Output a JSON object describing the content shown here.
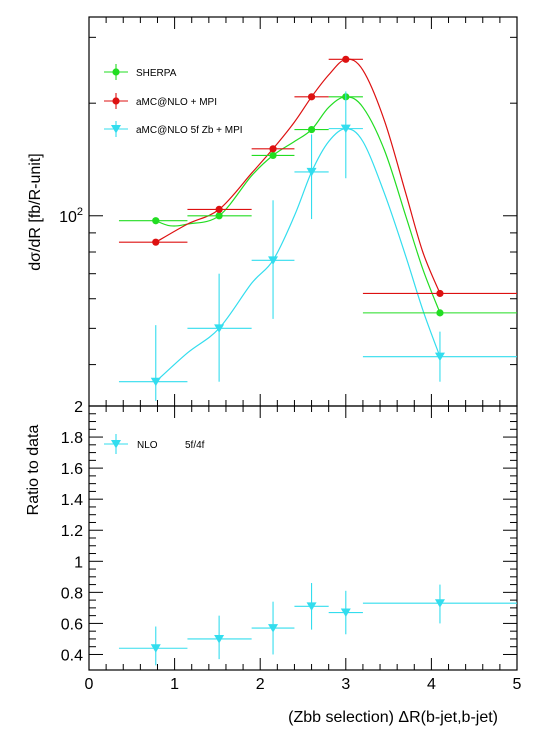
{
  "chart_data": [
    {
      "panel": "top",
      "type": "scatter",
      "ylabel": "dσ/dR [fb/R-unit]",
      "yscale": "log",
      "ylim": [
        31,
        340
      ],
      "xlim": [
        0,
        5
      ],
      "ytick_labels": [
        {
          "value": 100,
          "label": "10²"
        }
      ],
      "legend_position": "top-left",
      "series": [
        {
          "name": "SHERPA",
          "color": "#22dd22",
          "marker": "circle",
          "points": [
            {
              "x": 0.78,
              "xlo": 0.35,
              "xhi": 1.15,
              "y": 97,
              "ylo": 97,
              "yhi": 97
            },
            {
              "x": 1.52,
              "xlo": 1.15,
              "xhi": 1.9,
              "y": 100,
              "ylo": 100,
              "yhi": 100
            },
            {
              "x": 2.15,
              "xlo": 1.9,
              "xhi": 2.4,
              "y": 145,
              "ylo": 145,
              "yhi": 145
            },
            {
              "x": 2.6,
              "xlo": 2.4,
              "xhi": 2.8,
              "y": 170,
              "ylo": 170,
              "yhi": 170
            },
            {
              "x": 3.0,
              "xlo": 2.8,
              "xhi": 3.2,
              "y": 208,
              "ylo": 208,
              "yhi": 208
            },
            {
              "x": 4.1,
              "xlo": 3.2,
              "xhi": 5.0,
              "y": 55,
              "ylo": 55,
              "yhi": 55
            }
          ],
          "curve": [
            [
              0.78,
              97
            ],
            [
              0.95,
              94
            ],
            [
              1.15,
              95
            ],
            [
              1.52,
              100
            ],
            [
              1.9,
              128
            ],
            [
              2.15,
              145
            ],
            [
              2.4,
              158
            ],
            [
              2.6,
              170
            ],
            [
              2.8,
              195
            ],
            [
              3.0,
              208
            ],
            [
              3.2,
              195
            ],
            [
              3.45,
              150
            ],
            [
              3.7,
              100
            ],
            [
              3.9,
              72
            ],
            [
              4.1,
              55
            ]
          ]
        },
        {
          "name": "aMC@NLO + MPI",
          "color": "#dd1111",
          "marker": "circle",
          "points": [
            {
              "x": 0.78,
              "xlo": 0.35,
              "xhi": 1.15,
              "y": 85,
              "ylo": 85,
              "yhi": 85
            },
            {
              "x": 1.52,
              "xlo": 1.15,
              "xhi": 1.9,
              "y": 104,
              "ylo": 104,
              "yhi": 104
            },
            {
              "x": 2.15,
              "xlo": 1.9,
              "xhi": 2.4,
              "y": 151,
              "ylo": 151,
              "yhi": 151
            },
            {
              "x": 2.6,
              "xlo": 2.4,
              "xhi": 2.8,
              "y": 208,
              "ylo": 208,
              "yhi": 208
            },
            {
              "x": 3.0,
              "xlo": 2.8,
              "xhi": 3.2,
              "y": 262,
              "ylo": 262,
              "yhi": 262
            },
            {
              "x": 4.1,
              "xlo": 3.2,
              "xhi": 5.0,
              "y": 62,
              "ylo": 62,
              "yhi": 62
            }
          ],
          "curve": [
            [
              0.78,
              85
            ],
            [
              1.15,
              95
            ],
            [
              1.52,
              104
            ],
            [
              1.9,
              130
            ],
            [
              2.15,
              151
            ],
            [
              2.4,
              178
            ],
            [
              2.6,
              208
            ],
            [
              2.8,
              238
            ],
            [
              3.0,
              262
            ],
            [
              3.2,
              245
            ],
            [
              3.45,
              180
            ],
            [
              3.7,
              115
            ],
            [
              3.9,
              80
            ],
            [
              4.1,
              62
            ]
          ]
        },
        {
          "name": "aMC@NLO 5f Zb + MPI",
          "color": "#33ddee",
          "marker": "triangle-down",
          "points": [
            {
              "x": 0.78,
              "xlo": 0.35,
              "xhi": 1.15,
              "y": 36,
              "ylo": 32,
              "yhi": 51
            },
            {
              "x": 1.52,
              "xlo": 1.15,
              "xhi": 1.9,
              "y": 50,
              "ylo": 36,
              "yhi": 70
            },
            {
              "x": 2.15,
              "xlo": 1.9,
              "xhi": 2.4,
              "y": 76,
              "ylo": 53,
              "yhi": 110
            },
            {
              "x": 2.6,
              "xlo": 2.4,
              "xhi": 2.8,
              "y": 131,
              "ylo": 98,
              "yhi": 165
            },
            {
              "x": 3.0,
              "xlo": 2.8,
              "xhi": 3.2,
              "y": 171,
              "ylo": 126,
              "yhi": 215
            },
            {
              "x": 4.1,
              "xlo": 3.2,
              "xhi": 5.0,
              "y": 42,
              "ylo": 36,
              "yhi": 49
            }
          ],
          "curve": [
            [
              0.78,
              36
            ],
            [
              1.15,
              43
            ],
            [
              1.52,
              50
            ],
            [
              1.9,
              66
            ],
            [
              2.15,
              76
            ],
            [
              2.4,
              100
            ],
            [
              2.6,
              131
            ],
            [
              2.8,
              158
            ],
            [
              3.0,
              171
            ],
            [
              3.2,
              158
            ],
            [
              3.45,
              115
            ],
            [
              3.7,
              78
            ],
            [
              3.9,
              56
            ],
            [
              4.1,
              42
            ]
          ]
        }
      ]
    },
    {
      "panel": "bottom",
      "type": "scatter",
      "ylabel": "Ratio to data",
      "xlabel": "(Zbb selection) ΔR(b-jet,b-jet)",
      "ylim": [
        0.3,
        2.0
      ],
      "xlim": [
        0,
        5
      ],
      "yticks": [
        0.4,
        0.6,
        0.8,
        1,
        1.2,
        1.4,
        1.6,
        1.8,
        2
      ],
      "xticks": [
        0,
        1,
        2,
        3,
        4,
        5
      ],
      "legend_position": "top-left",
      "legend_label": "NLO",
      "legend_extra": "5f/4f",
      "series": [
        {
          "name": "NLO",
          "color": "#33ddee",
          "marker": "triangle-down",
          "points": [
            {
              "x": 0.78,
              "xlo": 0.35,
              "xhi": 1.15,
              "y": 0.44,
              "ylo": 0.33,
              "yhi": 0.58
            },
            {
              "x": 1.52,
              "xlo": 1.15,
              "xhi": 1.9,
              "y": 0.5,
              "ylo": 0.37,
              "yhi": 0.65
            },
            {
              "x": 2.15,
              "xlo": 1.9,
              "xhi": 2.4,
              "y": 0.57,
              "ylo": 0.4,
              "yhi": 0.74
            },
            {
              "x": 2.6,
              "xlo": 2.4,
              "xhi": 2.8,
              "y": 0.71,
              "ylo": 0.56,
              "yhi": 0.86
            },
            {
              "x": 3.0,
              "xlo": 2.8,
              "xhi": 3.2,
              "y": 0.67,
              "ylo": 0.53,
              "yhi": 0.81
            },
            {
              "x": 4.1,
              "xlo": 3.2,
              "xhi": 5.0,
              "y": 0.73,
              "ylo": 0.6,
              "yhi": 0.85
            }
          ]
        }
      ]
    }
  ]
}
